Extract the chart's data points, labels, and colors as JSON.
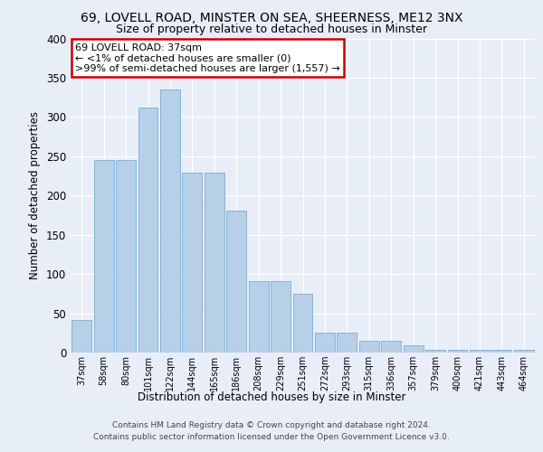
{
  "title1": "69, LOVELL ROAD, MINSTER ON SEA, SHEERNESS, ME12 3NX",
  "title2": "Size of property relative to detached houses in Minster",
  "xlabel": "Distribution of detached houses by size in Minster",
  "ylabel": "Number of detached properties",
  "categories": [
    "37sqm",
    "58sqm",
    "80sqm",
    "101sqm",
    "122sqm",
    "144sqm",
    "165sqm",
    "186sqm",
    "208sqm",
    "229sqm",
    "251sqm",
    "272sqm",
    "293sqm",
    "315sqm",
    "336sqm",
    "357sqm",
    "379sqm",
    "400sqm",
    "421sqm",
    "443sqm",
    "464sqm"
  ],
  "values": [
    42,
    245,
    245,
    312,
    335,
    229,
    229,
    181,
    91,
    91,
    75,
    25,
    25,
    15,
    15,
    9,
    4,
    4,
    3,
    3,
    3
  ],
  "bar_color": "#b8cfe8",
  "bar_edge_color": "#7aadd4",
  "annotation_line1": "69 LOVELL ROAD: 37sqm",
  "annotation_line2": "← <1% of detached houses are smaller (0)",
  "annotation_line3": ">99% of semi-detached houses are larger (1,557) →",
  "ylim": [
    0,
    400
  ],
  "yticks": [
    0,
    50,
    100,
    150,
    200,
    250,
    300,
    350,
    400
  ],
  "footer": "Contains HM Land Registry data © Crown copyright and database right 2024.\nContains public sector information licensed under the Open Government Licence v3.0.",
  "bg_color": "#e8eef8",
  "plot_bg_color": "#e8eef8"
}
